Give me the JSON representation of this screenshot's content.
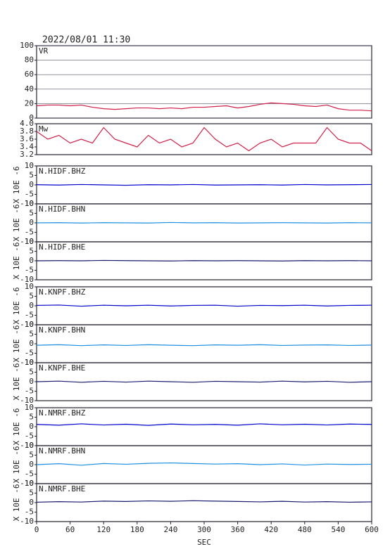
{
  "chart_data": [
    {
      "type": "line",
      "title": "2022/08/01 11:30",
      "label": "VR",
      "color": "#d0204a",
      "grid": true,
      "xlim": [
        0,
        600
      ],
      "ylim": [
        0,
        100
      ],
      "yticks": [
        0,
        20,
        40,
        60,
        80,
        100
      ],
      "x": [
        0,
        20,
        40,
        60,
        80,
        100,
        120,
        140,
        160,
        180,
        200,
        220,
        240,
        260,
        280,
        300,
        320,
        340,
        360,
        380,
        400,
        420,
        440,
        460,
        480,
        500,
        520,
        540,
        560,
        580,
        600
      ],
      "values": [
        17,
        18,
        18,
        17,
        18,
        15,
        13,
        12,
        13,
        14,
        14,
        13,
        14,
        13,
        15,
        15,
        16,
        17,
        14,
        16,
        19,
        21,
        20,
        19,
        17,
        16,
        18,
        13,
        11,
        11,
        10
      ]
    },
    {
      "type": "line",
      "label": "Mw",
      "color": "#d0204a",
      "grid": false,
      "xlim": [
        0,
        600
      ],
      "ylim": [
        3.2,
        4
      ],
      "yticks": [
        {
          "value": 3.2,
          "label": "3.2"
        },
        3.4,
        3.6,
        3.8,
        {
          "value": 4,
          "label": "4.0"
        }
      ],
      "x": [
        0,
        20,
        40,
        60,
        80,
        100,
        120,
        140,
        160,
        180,
        200,
        220,
        240,
        260,
        280,
        300,
        320,
        340,
        360,
        380,
        400,
        420,
        440,
        460,
        480,
        500,
        520,
        540,
        560,
        580,
        600
      ],
      "values": [
        3.8,
        3.6,
        3.7,
        3.5,
        3.6,
        3.5,
        3.9,
        3.6,
        3.5,
        3.4,
        3.7,
        3.5,
        3.6,
        3.4,
        3.5,
        3.9,
        3.6,
        3.4,
        3.5,
        3.3,
        3.5,
        3.6,
        3.4,
        3.5,
        3.5,
        3.5,
        3.9,
        3.6,
        3.5,
        3.5,
        3.3
      ]
    },
    {
      "type": "line",
      "label": "N.HIDF.BHZ",
      "ylabel": "X 10E -6",
      "color": "#0000cc",
      "xlim": [
        0,
        600
      ],
      "ylim": [
        -10,
        10
      ],
      "yticks": [
        -10,
        -5,
        0,
        5,
        10
      ],
      "x": [
        0,
        40,
        80,
        120,
        160,
        200,
        240,
        280,
        320,
        360,
        400,
        440,
        480,
        520,
        560,
        600
      ],
      "values": [
        0.1,
        -0.1,
        0.2,
        0,
        -0.2,
        0.1,
        0,
        0.2,
        -0.1,
        0,
        0.1,
        -0.1,
        0.2,
        0,
        0.1,
        0.2
      ]
    },
    {
      "type": "line",
      "label": "N.HIDF.BHN",
      "ylabel": "X 10E -6",
      "color": "#1e8fe0",
      "xlim": [
        0,
        600
      ],
      "ylim": [
        -10,
        10
      ],
      "yticks": [
        -10,
        -5,
        0,
        5,
        10
      ],
      "x": [
        0,
        40,
        80,
        120,
        160,
        200,
        240,
        280,
        320,
        360,
        400,
        440,
        480,
        520,
        560,
        600
      ],
      "values": [
        0,
        0.1,
        -0.1,
        0.1,
        0,
        -0.1,
        0.2,
        0,
        0.1,
        -0.1,
        0,
        0.1,
        0,
        -0.1,
        0.1,
        0
      ]
    },
    {
      "type": "line",
      "label": "N.HIDF.BHE",
      "ylabel": "X 10E -6",
      "color": "#1a1a6e",
      "xlim": [
        0,
        600
      ],
      "ylim": [
        -10,
        10
      ],
      "yticks": [
        -10,
        -5,
        0,
        5,
        10
      ],
      "x": [
        0,
        40,
        80,
        120,
        160,
        200,
        240,
        280,
        320,
        360,
        400,
        440,
        480,
        520,
        560,
        600
      ],
      "values": [
        0,
        0.1,
        0,
        0.2,
        0.1,
        0,
        -0.1,
        0.1,
        0,
        0.1,
        0,
        -0.1,
        0.1,
        0,
        0.1,
        0
      ]
    },
    {
      "type": "line",
      "label": "N.KNPF.BHZ",
      "ylabel": "X 10E -6",
      "color": "#0000cc",
      "xlim": [
        0,
        600
      ],
      "ylim": [
        -10,
        10
      ],
      "yticks": [
        -10,
        -5,
        0,
        5,
        10
      ],
      "x": [
        0,
        40,
        80,
        120,
        160,
        200,
        240,
        280,
        320,
        360,
        400,
        440,
        480,
        520,
        560,
        600
      ],
      "values": [
        0.2,
        0.4,
        -0.2,
        0.3,
        0,
        0.3,
        -0.1,
        0.2,
        0.3,
        -0.2,
        0.2,
        0.1,
        0.3,
        -0.1,
        0.2,
        0.3
      ]
    },
    {
      "type": "line",
      "label": "N.KNPF.BHN",
      "ylabel": "X 10E -6",
      "color": "#1e8fe0",
      "xlim": [
        0,
        600
      ],
      "ylim": [
        -10,
        10
      ],
      "yticks": [
        -10,
        -5,
        0,
        5,
        10
      ],
      "x": [
        0,
        40,
        80,
        120,
        160,
        200,
        240,
        280,
        320,
        360,
        400,
        440,
        480,
        520,
        560,
        600
      ],
      "values": [
        -0.8,
        -0.5,
        -1,
        -0.6,
        -0.9,
        -0.5,
        -0.8,
        -1,
        -0.6,
        -0.8,
        -0.5,
        -0.9,
        -0.7,
        -0.6,
        -0.9,
        -0.7
      ]
    },
    {
      "type": "line",
      "label": "N.KNPF.BHE",
      "ylabel": "X 10E -6",
      "color": "#1a1a6e",
      "xlim": [
        0,
        600
      ],
      "ylim": [
        -10,
        10
      ],
      "yticks": [
        -10,
        -5,
        0,
        5,
        10
      ],
      "x": [
        0,
        40,
        80,
        120,
        160,
        200,
        240,
        280,
        320,
        360,
        400,
        440,
        480,
        520,
        560,
        600
      ],
      "values": [
        0,
        0.3,
        -0.3,
        0.2,
        -0.2,
        0.3,
        0,
        -0.3,
        0.2,
        0,
        -0.2,
        0.3,
        -0.1,
        0.2,
        -0.3,
        0
      ]
    },
    {
      "type": "line",
      "label": "N.NMRF.BHZ",
      "ylabel": "X 10E -6",
      "color": "#0000cc",
      "xlim": [
        0,
        600
      ],
      "ylim": [
        -10,
        10
      ],
      "yticks": [
        -10,
        -5,
        0,
        5,
        10
      ],
      "x": [
        0,
        40,
        80,
        120,
        160,
        200,
        240,
        280,
        320,
        360,
        400,
        440,
        480,
        520,
        560,
        600
      ],
      "values": [
        1.2,
        0.8,
        1.5,
        0.9,
        1.3,
        0.7,
        1.4,
        1,
        1.2,
        0.8,
        1.5,
        1,
        1.3,
        0.9,
        1.4,
        1.2
      ]
    },
    {
      "type": "line",
      "label": "N.NMRF.BHN",
      "ylabel": "X 10E -6",
      "color": "#1e8fe0",
      "xlim": [
        0,
        600
      ],
      "ylim": [
        -10,
        10
      ],
      "yticks": [
        -10,
        -5,
        0,
        5,
        10
      ],
      "x": [
        0,
        40,
        80,
        120,
        160,
        200,
        240,
        280,
        320,
        360,
        400,
        440,
        480,
        520,
        560,
        600
      ],
      "values": [
        0,
        0.5,
        -0.3,
        0.6,
        0.2,
        0.7,
        0.9,
        0.6,
        0.3,
        0.5,
        0,
        0.4,
        -0.2,
        0.3,
        0.1,
        0.2
      ]
    },
    {
      "type": "line",
      "label": "N.NMRF.BHE",
      "ylabel": "X 10E -6",
      "color": "#1a1a6e",
      "xlim": [
        0,
        600
      ],
      "ylim": [
        -10,
        10
      ],
      "yticks": [
        -10,
        -5,
        0,
        5,
        10
      ],
      "xlabel": "SEC",
      "xticks": [
        0,
        60,
        120,
        180,
        240,
        300,
        360,
        420,
        480,
        540,
        600
      ],
      "x": [
        0,
        40,
        80,
        120,
        160,
        200,
        240,
        280,
        320,
        360,
        400,
        440,
        480,
        520,
        560,
        600
      ],
      "values": [
        0.2,
        0.5,
        0.3,
        0.8,
        0.6,
        0.9,
        0.7,
        1,
        0.8,
        0.6,
        0.4,
        0.7,
        0.3,
        0.5,
        0.2,
        0.4
      ]
    }
  ]
}
